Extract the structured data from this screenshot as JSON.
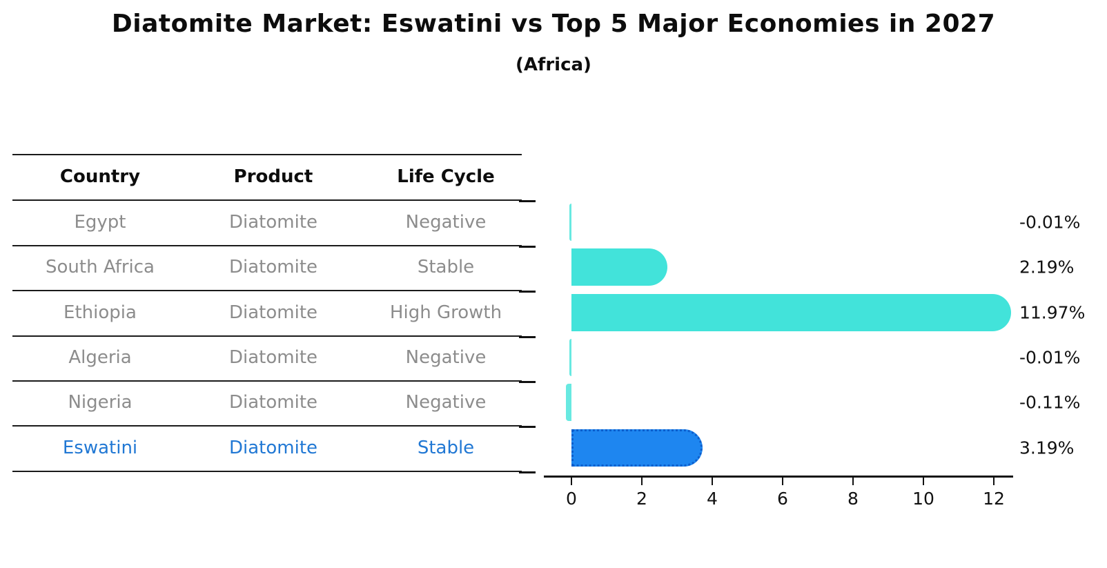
{
  "title": "Diatomite Market: Eswatini vs Top 5 Major Economies in 2027",
  "subtitle": "(Africa)",
  "table": {
    "headers": [
      "Country",
      "Product",
      "Life Cycle"
    ],
    "rows": [
      {
        "country": "Egypt",
        "product": "Diatomite",
        "life_cycle": "Negative",
        "highlight": false
      },
      {
        "country": "South Africa",
        "product": "Diatomite",
        "life_cycle": "Stable",
        "highlight": false
      },
      {
        "country": "Ethiopia",
        "product": "Diatomite",
        "life_cycle": "High Growth",
        "highlight": false
      },
      {
        "country": "Algeria",
        "product": "Diatomite",
        "life_cycle": "Negative",
        "highlight": false
      },
      {
        "country": "Nigeria",
        "product": "Diatomite",
        "life_cycle": "Negative",
        "highlight": false
      },
      {
        "country": "Eswatini",
        "product": "Diatomite",
        "life_cycle": "Stable",
        "highlight": true
      }
    ]
  },
  "chart_data": {
    "type": "bar",
    "orientation": "horizontal",
    "title": "Diatomite Market: Eswatini vs Top 5 Major Economies in 2027 (Africa)",
    "categories": [
      "Egypt",
      "South Africa",
      "Ethiopia",
      "Algeria",
      "Nigeria",
      "Eswatini"
    ],
    "values": [
      -0.01,
      2.19,
      11.97,
      -0.01,
      -0.11,
      3.19
    ],
    "value_labels": [
      "-0.01%",
      "2.19%",
      "11.97%",
      "-0.01%",
      "-0.11%",
      "3.19%"
    ],
    "xticks": [
      0,
      2,
      4,
      6,
      8,
      10,
      12
    ],
    "xlim": [
      -0.8,
      12.55
    ],
    "grid": false,
    "legend": false,
    "bar_color": "#42e3da",
    "highlight_color": "#1e86f0",
    "highlight_index": 5,
    "highlight_edge_style": "dotted"
  },
  "colors": {
    "text_primary": "#0d0d0d",
    "text_muted": "#8c8c8c",
    "highlight_text": "#2178d4",
    "bar": "#42e3da",
    "highlight_bar": "#1e86f0"
  }
}
